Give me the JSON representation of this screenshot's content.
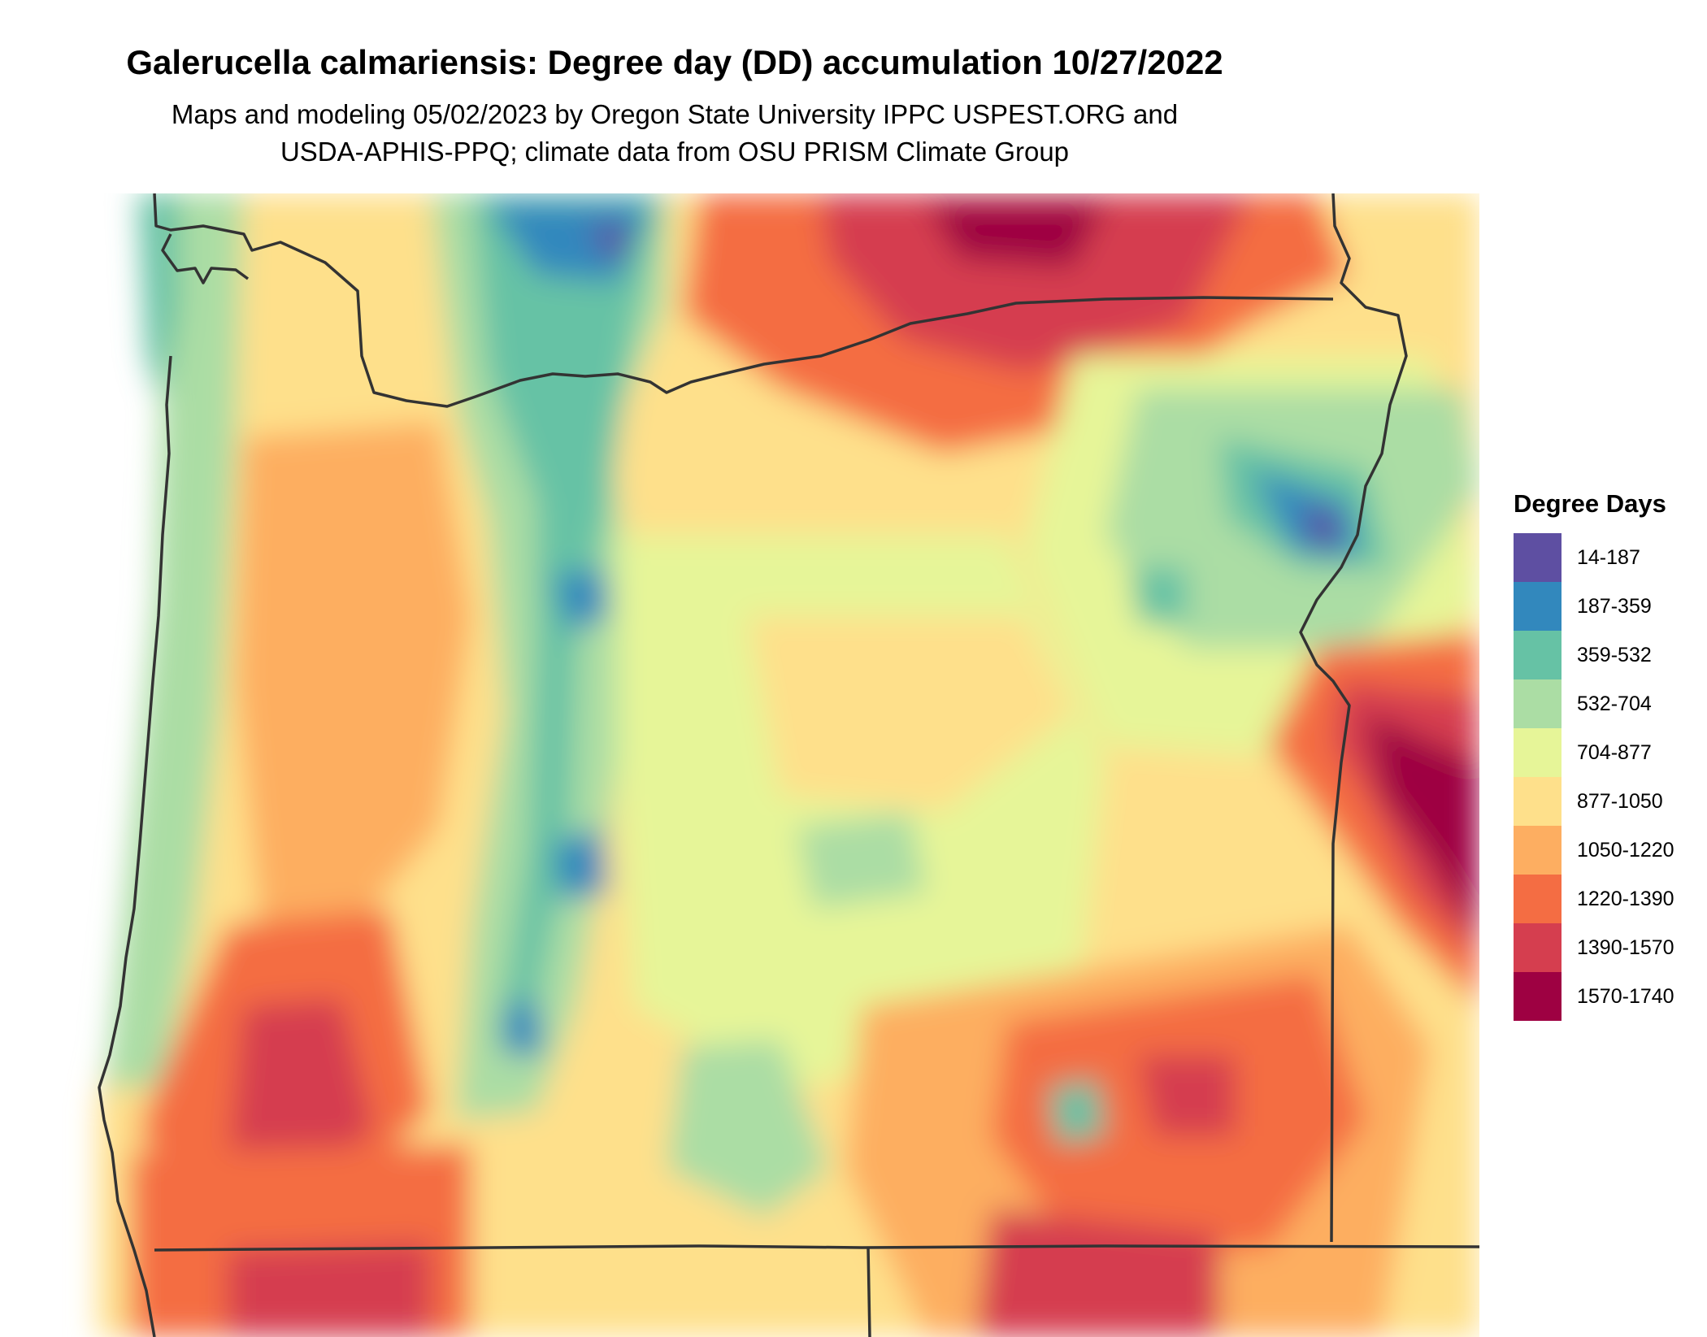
{
  "map": {
    "title": "Galerucella calmariensis: Degree day (DD) accumulation 10/27/2022",
    "subtitle_line1": "Maps and modeling 05/02/2023 by Oregon State University IPPC USPEST.ORG and",
    "subtitle_line2": "USDA-APHIS-PPQ; climate data from OSU PRISM Climate Group"
  },
  "legend": {
    "title": "Degree Days",
    "items": [
      {
        "label": "14-187",
        "color": "#5e4fa2"
      },
      {
        "label": "187-359",
        "color": "#3288bd"
      },
      {
        "label": "359-532",
        "color": "#66c2a5"
      },
      {
        "label": "532-704",
        "color": "#abdda4"
      },
      {
        "label": "704-877",
        "color": "#e6f598"
      },
      {
        "label": "877-1050",
        "color": "#fee08b"
      },
      {
        "label": "1050-1220",
        "color": "#fdae61"
      },
      {
        "label": "1220-1390",
        "color": "#f46d43"
      },
      {
        "label": "1390-1570",
        "color": "#d53e4f"
      },
      {
        "label": "1570-1740",
        "color": "#9e0142"
      }
    ]
  }
}
